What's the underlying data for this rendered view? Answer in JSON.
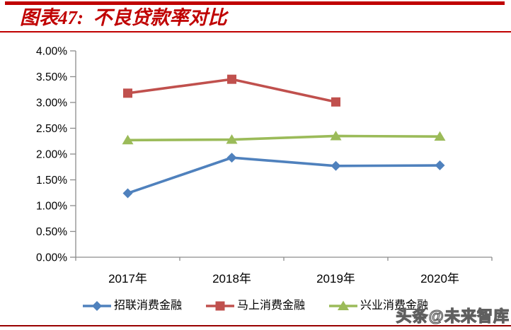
{
  "header": {
    "title": "图表47:  不良贷款率对比",
    "accent_color": "#C00000"
  },
  "chart_data": {
    "type": "line",
    "title": "不良贷款率对比",
    "categories": [
      "2017年",
      "2018年",
      "2019年",
      "2020年"
    ],
    "series": [
      {
        "name": "招联消费金融",
        "values": [
          1.24,
          1.93,
          1.77,
          1.78
        ],
        "color": "#4F81BD",
        "marker": "diamond"
      },
      {
        "name": "马上消费金融",
        "values": [
          3.18,
          3.45,
          3.01,
          null
        ],
        "color": "#C0504D",
        "marker": "square"
      },
      {
        "name": "兴业消费金融",
        "values": [
          2.27,
          2.28,
          2.35,
          2.34
        ],
        "color": "#9BBB59",
        "marker": "triangle"
      }
    ],
    "ylim": [
      0,
      4
    ],
    "y_ticks": [
      "0.00%",
      "0.50%",
      "1.00%",
      "1.50%",
      "2.00%",
      "2.50%",
      "3.00%",
      "3.50%",
      "4.00%"
    ],
    "grid": false,
    "legend_position": "bottom",
    "axis_color": "#8c8c8c",
    "label_color": "#000000"
  },
  "watermark": {
    "text": "头条@未来智库"
  },
  "footer": {
    "line_color": "#990000"
  }
}
